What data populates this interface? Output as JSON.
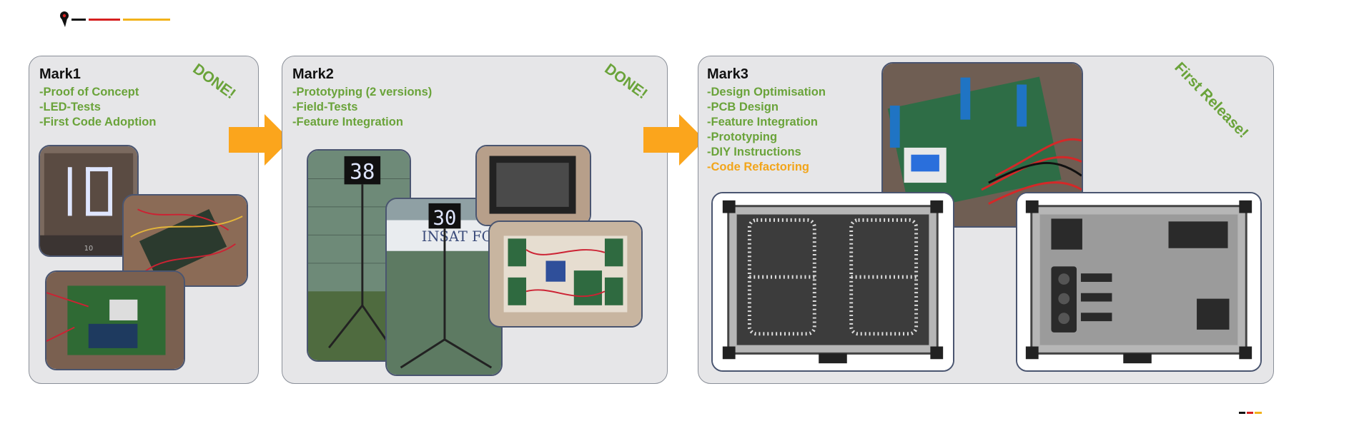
{
  "panels": [
    {
      "title": "Mark1",
      "status": "DONE!",
      "items": [
        "-Proof of Concept",
        "-LED-Tests",
        "-First Code Adoption"
      ]
    },
    {
      "title": "Mark2",
      "status": "DONE!",
      "items": [
        "-Prototyping (2 versions)",
        "-Field-Tests",
        "-Feature Integration"
      ]
    },
    {
      "title": "Mark3",
      "status": "First Release!",
      "items": [
        "-Design Optimisation",
        "-PCB Design",
        "-Feature Integration",
        "-Prototyping",
        "-DIY Instructions"
      ],
      "highlight_item": "-Code Refactoring"
    }
  ],
  "photos": {
    "m1_display_digits": "10",
    "m2_display_small": "38",
    "m2_display_large": "30",
    "m2_banner": "INSAT FOE"
  },
  "colors": {
    "done": "#6aa33a",
    "highlight": "#f2a51a",
    "arrow": "#fba51c",
    "panel": "#e6e6e8"
  }
}
